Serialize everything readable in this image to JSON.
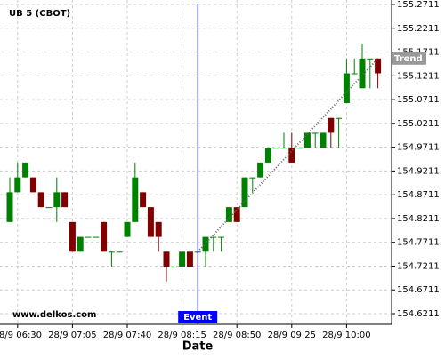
{
  "chart_data": {
    "type": "candlestick",
    "title": "UB 5 (CBOT)",
    "x_label": "Date",
    "watermark": "www.delkos.com",
    "x": [
      "28/9 06:25",
      "28/9 06:30",
      "28/9 06:35",
      "28/9 06:40",
      "28/9 06:45",
      "28/9 06:50",
      "28/9 06:55",
      "28/9 07:00",
      "28/9 07:05",
      "28/9 07:10",
      "28/9 07:15",
      "28/9 07:20",
      "28/9 07:25",
      "28/9 07:30",
      "28/9 07:35",
      "28/9 07:40",
      "28/9 07:45",
      "28/9 07:50",
      "28/9 07:55",
      "28/9 08:00",
      "28/9 08:05",
      "28/9 08:10",
      "28/9 08:15",
      "28/9 08:20",
      "28/9 08:25",
      "28/9 08:30",
      "28/9 08:35",
      "28/9 08:40",
      "28/9 08:45",
      "28/9 08:50",
      "28/9 08:55",
      "28/9 09:00",
      "28/9 09:05",
      "28/9 09:10",
      "28/9 09:15",
      "28/9 09:20",
      "28/9 09:25",
      "28/9 09:30",
      "28/9 09:35",
      "28/9 09:40",
      "28/9 09:45",
      "28/9 09:50",
      "28/9 09:55",
      "28/9 10:00",
      "28/9 10:05",
      "28/9 10:10",
      "28/9 10:15",
      "28/9 10:20"
    ],
    "open": [
      154.8138,
      154.8763,
      154.9075,
      154.9075,
      154.8763,
      154.845,
      154.845,
      154.8763,
      154.8138,
      154.7513,
      154.7825,
      154.7825,
      154.8138,
      154.7513,
      154.7513,
      154.7825,
      154.8138,
      154.8763,
      154.845,
      154.8138,
      154.7513,
      154.72,
      154.72,
      154.7513,
      154.7513,
      154.7513,
      154.7825,
      154.7825,
      154.8138,
      154.845,
      154.845,
      154.9075,
      154.9075,
      154.9388,
      154.97,
      154.97,
      154.97,
      154.97,
      154.97,
      155.0013,
      154.97,
      155.0325,
      155.0325,
      155.0638,
      155.1263,
      155.095,
      155.1575,
      155.1575
    ],
    "high": [
      154.9075,
      154.9388,
      154.9388,
      154.9075,
      154.8763,
      154.845,
      154.9075,
      154.8763,
      154.8138,
      154.7825,
      154.7825,
      154.7825,
      154.8138,
      154.7513,
      154.7513,
      154.8138,
      154.9388,
      154.8763,
      154.845,
      154.8138,
      154.7513,
      154.72,
      154.7513,
      154.7513,
      154.7513,
      154.7825,
      154.7825,
      154.7825,
      154.845,
      154.845,
      154.9075,
      154.9075,
      154.9388,
      154.97,
      154.97,
      155.0013,
      155.0013,
      154.97,
      155.0013,
      155.0013,
      155.0013,
      155.0325,
      155.0325,
      155.1575,
      155.1575,
      155.1888,
      155.1575,
      155.1575
    ],
    "low": [
      154.8138,
      154.8763,
      154.9075,
      154.8763,
      154.845,
      154.845,
      154.8138,
      154.845,
      154.7513,
      154.7513,
      154.7825,
      154.7825,
      154.7513,
      154.72,
      154.7513,
      154.7825,
      154.8138,
      154.845,
      154.7825,
      154.7513,
      154.6888,
      154.72,
      154.72,
      154.72,
      154.7513,
      154.72,
      154.7513,
      154.7513,
      154.8138,
      154.8138,
      154.845,
      154.8763,
      154.9075,
      154.9388,
      154.97,
      154.97,
      154.9388,
      154.97,
      154.97,
      154.97,
      154.97,
      154.97,
      154.97,
      155.0638,
      155.1263,
      155.095,
      155.095,
      155.095
    ],
    "close": [
      154.8763,
      154.9075,
      154.9388,
      154.8763,
      154.845,
      154.845,
      154.8763,
      154.845,
      154.7513,
      154.7825,
      154.7825,
      154.7825,
      154.7513,
      154.7513,
      154.7513,
      154.8138,
      154.9075,
      154.845,
      154.7825,
      154.7825,
      154.72,
      154.72,
      154.7513,
      154.72,
      154.7513,
      154.7825,
      154.7825,
      154.7825,
      154.845,
      154.8138,
      154.9075,
      154.9075,
      154.9388,
      154.97,
      154.97,
      154.97,
      154.9388,
      154.97,
      155.0013,
      155.0013,
      155.0013,
      155.0013,
      155.0325,
      155.1263,
      155.1263,
      155.1575,
      155.1575,
      155.1263
    ],
    "up_color": "#008000",
    "down_color": "#800000",
    "ylim": [
      154.5987,
      155.2804
    ],
    "yticks": [
      154.6211,
      154.6711,
      154.7211,
      154.7711,
      154.8211,
      154.8711,
      154.9211,
      154.9711,
      155.0211,
      155.0711,
      155.1211,
      155.1711,
      155.2211,
      155.2711
    ],
    "xticks": [
      "28/9 06:30",
      "28/9 07:05",
      "28/9 07:40",
      "28/9 08:15",
      "28/9 08:50",
      "28/9 09:25",
      "28/9 10:00"
    ],
    "grid": true,
    "event": {
      "label": "Event",
      "x": "28/9 08:25",
      "color": "#0000ff"
    },
    "trend": {
      "label": "Trend",
      "x": [
        "28/9 08:25",
        "28/9 10:20"
      ],
      "values": [
        154.7513,
        155.1575
      ]
    }
  }
}
